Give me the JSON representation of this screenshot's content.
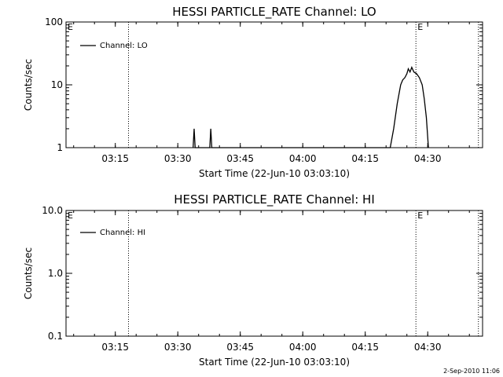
{
  "chart_data": [
    {
      "type": "line",
      "title": "HESSI PARTICLE_RATE Channel: LO",
      "xlabel": "Start Time (22-Jun-10 03:03:10)",
      "ylabel": "Counts/sec",
      "yscale": "log",
      "ylim": [
        1,
        100
      ],
      "yticks": [
        "1",
        "10",
        "100"
      ],
      "xticks": [
        "03:15",
        "03:30",
        "03:45",
        "04:00",
        "04:15",
        "04:30"
      ],
      "xlim_minutes_after_start": [
        0,
        100
      ],
      "grid": false,
      "legend": {
        "position": "top-left",
        "entries": [
          "Channel: LO"
        ]
      },
      "event_markers_minutes_after_start": [
        15,
        84,
        99
      ],
      "event_labels": [
        {
          "text": "E",
          "at": "left-edge"
        },
        {
          "text": "E",
          "at": "marker-2"
        }
      ],
      "series": [
        {
          "name": "Channel: LO",
          "points": [
            [
              "03:33:40",
              1
            ],
            [
              "03:33:55",
              2
            ],
            [
              "03:34:10",
              1
            ],
            [
              "03:37:40",
              1
            ],
            [
              "03:37:55",
              2
            ],
            [
              "03:38:10",
              1
            ],
            [
              "04:21:00",
              1
            ],
            [
              "04:21:50",
              2
            ],
            [
              "04:22:40",
              5
            ],
            [
              "04:23:30",
              10
            ],
            [
              "04:24:00",
              12
            ],
            [
              "04:24:30",
              13
            ],
            [
              "04:25:00",
              15
            ],
            [
              "04:25:20",
              18
            ],
            [
              "04:25:45",
              16
            ],
            [
              "04:26:10",
              19
            ],
            [
              "04:26:40",
              16
            ],
            [
              "04:27:20",
              15
            ],
            [
              "04:28:00",
              13
            ],
            [
              "04:28:40",
              10
            ],
            [
              "04:29:10",
              6
            ],
            [
              "04:29:40",
              3
            ],
            [
              "04:30:10",
              1
            ]
          ]
        }
      ]
    },
    {
      "type": "line",
      "title": "HESSI PARTICLE_RATE Channel: HI",
      "xlabel": "Start Time (22-Jun-10 03:03:10)",
      "ylabel": "Counts/sec",
      "yscale": "log",
      "ylim": [
        0.1,
        10
      ],
      "yticks": [
        "0.1",
        "1.0",
        "10.0"
      ],
      "xticks": [
        "03:15",
        "03:30",
        "03:45",
        "04:00",
        "04:15",
        "04:30"
      ],
      "xlim_minutes_after_start": [
        0,
        100
      ],
      "grid": false,
      "legend": {
        "position": "top-left",
        "entries": [
          "Channel: HI"
        ]
      },
      "event_markers_minutes_after_start": [
        15,
        84,
        99
      ],
      "event_labels": [
        {
          "text": "E",
          "at": "left-edge"
        },
        {
          "text": "E",
          "at": "marker-2"
        }
      ],
      "series": [
        {
          "name": "Channel: HI",
          "points": []
        }
      ]
    }
  ],
  "footer": {
    "date_stamp": "2-Sep-2010 11:06"
  }
}
